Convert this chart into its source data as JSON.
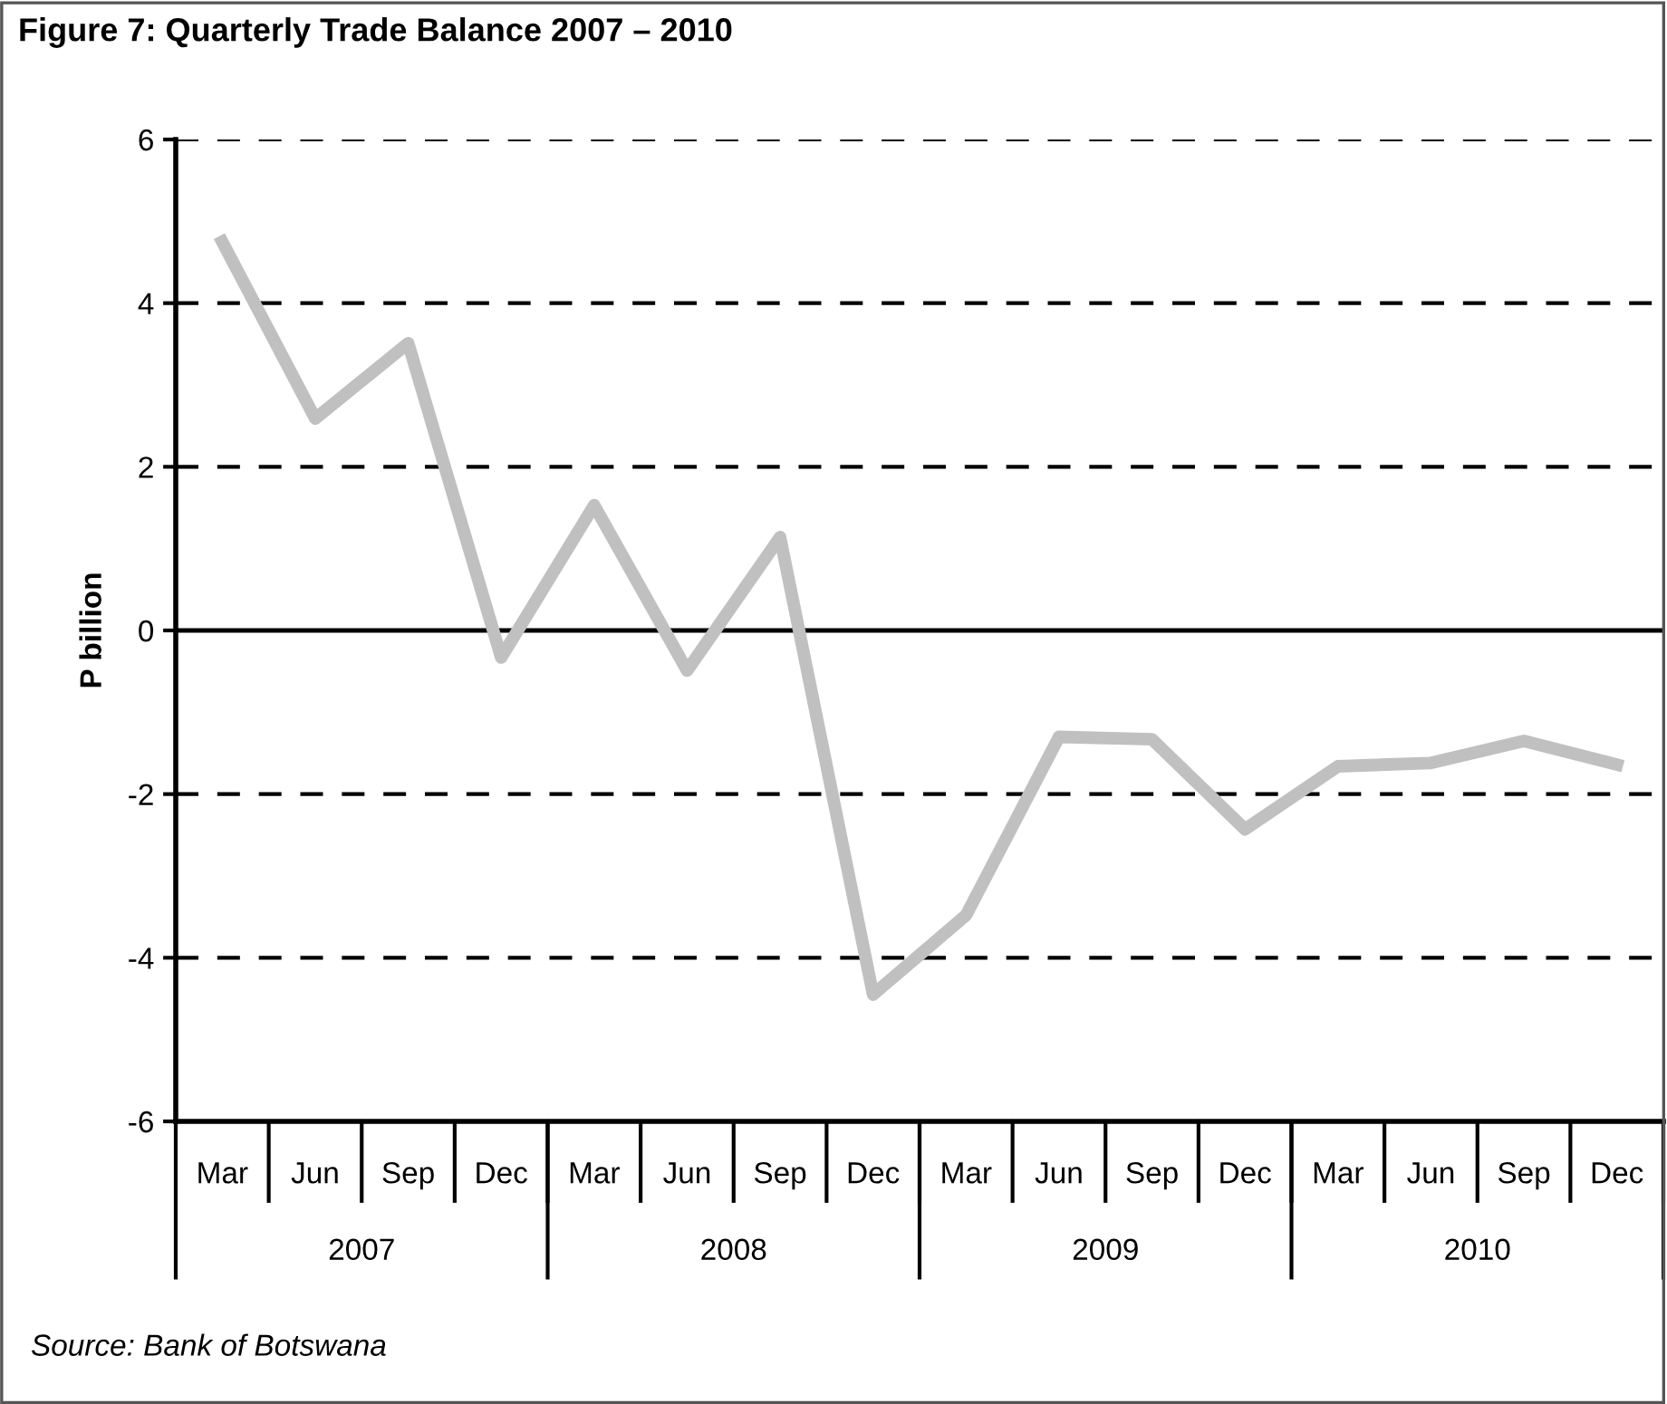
{
  "chart_data": {
    "type": "line",
    "title": "Figure 7: Quarterly Trade Balance 2007 – 2010",
    "ylabel": "P billion",
    "categories": [
      "Mar",
      "Jun",
      "Sep",
      "Dec",
      "Mar",
      "Jun",
      "Sep",
      "Dec",
      "Mar",
      "Jun",
      "Sep",
      "Dec",
      "Mar",
      "Jun",
      "Sep",
      "Dec"
    ],
    "series": [
      {
        "color": "#c0c0c0",
        "values": [
          4.75,
          2.59,
          3.51,
          -0.33,
          1.53,
          -0.49,
          1.14,
          -4.45,
          -3.48,
          -1.3,
          -1.33,
          -2.43,
          -1.66,
          -1.62,
          -1.35,
          -1.64
        ]
      }
    ],
    "ylim": [
      -6,
      6
    ],
    "yticks": [
      -6,
      -4,
      -2,
      0,
      2,
      4,
      6
    ],
    "grid": "y",
    "line_style": "solid",
    "marker": "none",
    "ref_lines": [
      {
        "axis": "y",
        "value": 0,
        "color": "#000000",
        "line_style": "solid"
      }
    ],
    "annotations": [
      "2007",
      "2008",
      "2009",
      "2010",
      "Source: Bank of Botswana"
    ]
  }
}
